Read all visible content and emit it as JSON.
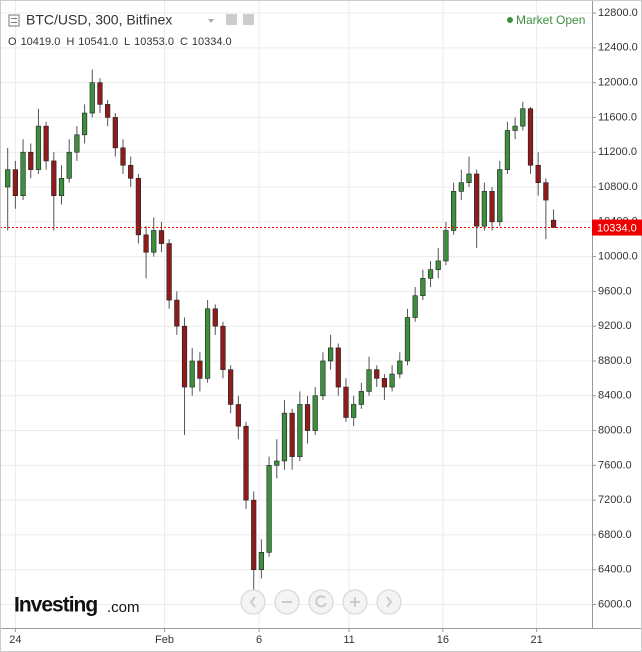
{
  "chart_data": {
    "type": "candlestick",
    "title": "BTC/USD, 300, Bitfinex",
    "market_status": "Market Open",
    "ohlc_legend": {
      "labels": [
        "O",
        "H",
        "L",
        "C"
      ],
      "values": [
        10419,
        10541,
        10353,
        10334
      ],
      "value_labels": [
        "10419.0",
        "10541.0",
        "10353.0",
        "10334.0"
      ]
    },
    "last_price": {
      "value": 10334,
      "label": "10334.0"
    },
    "logo": [
      "Investing",
      ".com"
    ],
    "up_color": "#3d8f3d",
    "down_color": "#8f1c1c",
    "grid": true,
    "ylim": [
      5730,
      12950
    ],
    "xlim": [
      -1,
      76
    ],
    "yticks": [
      {
        "value": 6000,
        "label": "6000.0"
      },
      {
        "value": 6400,
        "label": "6400.0"
      },
      {
        "value": 6800,
        "label": "6800.0"
      },
      {
        "value": 7200,
        "label": "7200.0"
      },
      {
        "value": 7600,
        "label": "7600.0"
      },
      {
        "value": 8000,
        "label": "8000.0"
      },
      {
        "value": 8400,
        "label": "8400.0"
      },
      {
        "value": 8800,
        "label": "8800.0"
      },
      {
        "value": 9200,
        "label": "9200.0"
      },
      {
        "value": 9600,
        "label": "9600.0"
      },
      {
        "value": 10000,
        "label": "10000.0"
      },
      {
        "value": 10400,
        "label": "10400.0"
      },
      {
        "value": 10800,
        "label": "10800.0"
      },
      {
        "value": 11200,
        "label": "11200.0"
      },
      {
        "value": 11600,
        "label": "11600.0"
      },
      {
        "value": 12000,
        "label": "12000.0"
      },
      {
        "value": 12400,
        "label": "12400.0"
      },
      {
        "value": 12800,
        "label": "12800.0"
      }
    ],
    "xticks": [
      {
        "value": 1,
        "label": "24"
      },
      {
        "value": 20.4,
        "label": "Feb"
      },
      {
        "value": 32.7,
        "label": "6"
      },
      {
        "value": 44.4,
        "label": "11"
      },
      {
        "value": 56.6,
        "label": "16"
      },
      {
        "value": 68.8,
        "label": "21"
      }
    ],
    "ohlc": [
      [
        10800,
        11250,
        10300,
        11000
      ],
      [
        11000,
        11100,
        10550,
        10700
      ],
      [
        10700,
        11350,
        10650,
        11200
      ],
      [
        11200,
        11300,
        10900,
        11000
      ],
      [
        11000,
        11700,
        10950,
        11500
      ],
      [
        11500,
        11550,
        11000,
        11100
      ],
      [
        11100,
        11200,
        10300,
        10700
      ],
      [
        10700,
        11050,
        10600,
        10900
      ],
      [
        10900,
        11350,
        10850,
        11200
      ],
      [
        11200,
        11500,
        11100,
        11400
      ],
      [
        11400,
        11750,
        11300,
        11650
      ],
      [
        11650,
        12150,
        11600,
        12000
      ],
      [
        12000,
        12050,
        11650,
        11750
      ],
      [
        11750,
        11800,
        11500,
        11600
      ],
      [
        11600,
        11650,
        11150,
        11250
      ],
      [
        11250,
        11350,
        10950,
        11050
      ],
      [
        11050,
        11150,
        10800,
        10900
      ],
      [
        10900,
        10950,
        10150,
        10250
      ],
      [
        10250,
        10350,
        9750,
        10050
      ],
      [
        10050,
        10450,
        10000,
        10300
      ],
      [
        10300,
        10400,
        10050,
        10150
      ],
      [
        10150,
        10200,
        9400,
        9500
      ],
      [
        9500,
        9600,
        9100,
        9200
      ],
      [
        9200,
        9300,
        7950,
        8500
      ],
      [
        8500,
        8950,
        8400,
        8800
      ],
      [
        8800,
        8900,
        8450,
        8600
      ],
      [
        8600,
        9500,
        8550,
        9400
      ],
      [
        9400,
        9450,
        9100,
        9200
      ],
      [
        9200,
        9250,
        8600,
        8700
      ],
      [
        8700,
        8750,
        8200,
        8300
      ],
      [
        8300,
        8400,
        7900,
        8050
      ],
      [
        8050,
        8100,
        7100,
        7200
      ],
      [
        7200,
        7300,
        5950,
        6400
      ],
      [
        6400,
        6750,
        6300,
        6600
      ],
      [
        6600,
        7700,
        6550,
        7600
      ],
      [
        7600,
        7900,
        7450,
        7650
      ],
      [
        7650,
        8350,
        7550,
        8200
      ],
      [
        8200,
        8250,
        7550,
        7700
      ],
      [
        7700,
        8450,
        7650,
        8300
      ],
      [
        8300,
        8400,
        7850,
        8000
      ],
      [
        8000,
        8500,
        7950,
        8400
      ],
      [
        8400,
        8900,
        8350,
        8800
      ],
      [
        8800,
        9100,
        8700,
        8950
      ],
      [
        8950,
        9000,
        8400,
        8500
      ],
      [
        8500,
        8600,
        8100,
        8150
      ],
      [
        8150,
        8400,
        8050,
        8300
      ],
      [
        8300,
        8550,
        8250,
        8450
      ],
      [
        8450,
        8850,
        8400,
        8700
      ],
      [
        8700,
        8750,
        8500,
        8600
      ],
      [
        8600,
        8650,
        8350,
        8500
      ],
      [
        8500,
        8750,
        8450,
        8650
      ],
      [
        8650,
        8900,
        8600,
        8800
      ],
      [
        8800,
        9400,
        8750,
        9300
      ],
      [
        9300,
        9650,
        9250,
        9550
      ],
      [
        9550,
        9850,
        9500,
        9750
      ],
      [
        9750,
        9950,
        9650,
        9850
      ],
      [
        9850,
        10100,
        9750,
        9950
      ],
      [
        9950,
        10400,
        9900,
        10300
      ],
      [
        10300,
        10850,
        10250,
        10750
      ],
      [
        10750,
        11000,
        10650,
        10850
      ],
      [
        10850,
        11150,
        10800,
        10950
      ],
      [
        10950,
        11000,
        10100,
        10350
      ],
      [
        10350,
        10850,
        10300,
        10750
      ],
      [
        10750,
        10800,
        10300,
        10400
      ],
      [
        10400,
        11100,
        10350,
        11000
      ],
      [
        11000,
        11550,
        10950,
        11450
      ],
      [
        11450,
        11600,
        11350,
        11500
      ],
      [
        11500,
        11780,
        11450,
        11700
      ],
      [
        11700,
        11720,
        10950,
        11050
      ],
      [
        11050,
        11200,
        10700,
        10850
      ],
      [
        10850,
        10900,
        10200,
        10650
      ],
      [
        10419,
        10541,
        10353,
        10334
      ]
    ]
  }
}
